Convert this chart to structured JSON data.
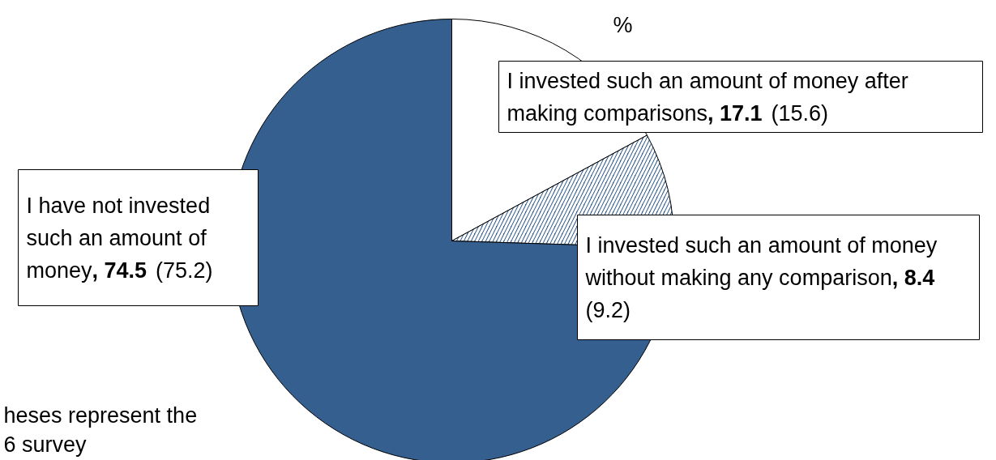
{
  "chart_data": {
    "type": "pie",
    "categories": [
      "I invested such an amount of money after making comparisons",
      "I invested such an amount of money without making any comparison",
      "I have not invested such an amount of money"
    ],
    "values": [
      17.1,
      8.4,
      74.5
    ],
    "colors": [
      "#ffffff",
      "#355f8e",
      "#355f8e"
    ],
    "value_labels": [
      ", 17.1 (15.6)",
      ", 8.4 (9.2)",
      ", 74.5 (75.2)"
    ],
    "annotations": [
      "%",
      "heses represent the\n6 survey"
    ]
  }
}
